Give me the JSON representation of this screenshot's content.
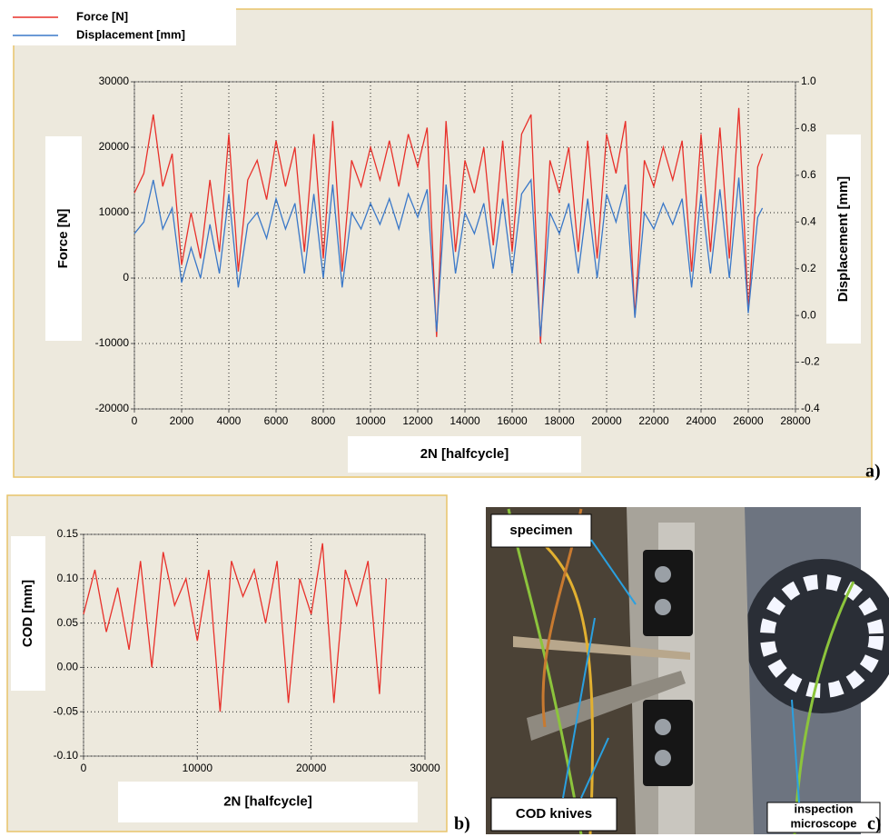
{
  "chart_data": [
    {
      "type": "line",
      "xlabel": "2N [halfcycle]",
      "ylabel": "Force [N]",
      "y2label": "Displacement [mm]",
      "legend": true,
      "grid": true,
      "xlim": [
        0,
        28000
      ],
      "xticks": [
        0,
        2000,
        4000,
        6000,
        8000,
        10000,
        12000,
        14000,
        16000,
        18000,
        20000,
        22000,
        24000,
        26000,
        28000
      ],
      "ylim": [
        -20000,
        30000
      ],
      "yticks": [
        -20000,
        -10000,
        0,
        10000,
        20000,
        30000
      ],
      "y2lim": [
        -0.4,
        1.0
      ],
      "y2ticks": [
        -0.4,
        -0.2,
        {
          "value": 0,
          "label": "0.0"
        },
        0.2,
        0.4,
        0.6,
        0.8,
        {
          "value": 1.0,
          "label": "1.0"
        }
      ],
      "x": [
        0,
        400,
        800,
        1200,
        1600,
        2000,
        2400,
        2800,
        3200,
        3600,
        4000,
        4400,
        4800,
        5200,
        5600,
        6000,
        6400,
        6800,
        7200,
        7600,
        8000,
        8400,
        8800,
        9200,
        9600,
        10000,
        10400,
        10800,
        11200,
        11600,
        12000,
        12400,
        12800,
        13200,
        13600,
        14000,
        14400,
        14800,
        15200,
        15600,
        16000,
        16400,
        16800,
        17200,
        17600,
        18000,
        18400,
        18800,
        19200,
        19600,
        20000,
        20400,
        20800,
        21200,
        21600,
        22000,
        22400,
        22800,
        23200,
        23600,
        24000,
        24400,
        24800,
        25200,
        25600,
        26000,
        26400,
        26600
      ],
      "series": [
        {
          "name": "Force [N]",
          "color": "#e8302a",
          "values": [
            13000,
            16000,
            25000,
            14000,
            19000,
            2000,
            10000,
            3000,
            15000,
            4000,
            22000,
            1000,
            15000,
            18000,
            12000,
            21000,
            14000,
            20000,
            4000,
            22000,
            3000,
            24000,
            1000,
            18000,
            14000,
            20000,
            15000,
            21000,
            14000,
            22000,
            17000,
            23000,
            -9000,
            24000,
            4000,
            18000,
            13000,
            20000,
            5000,
            21000,
            4000,
            22000,
            25000,
            -10000,
            18000,
            13000,
            20000,
            4000,
            21000,
            3000,
            22000,
            16000,
            24000,
            -6000,
            18000,
            14000,
            20000,
            15000,
            21000,
            1000,
            22000,
            4000,
            23000,
            3000,
            26000,
            -5000,
            17000,
            19000
          ]
        },
        {
          "name": "Displacement [mm]",
          "color": "#3a78c8",
          "axis": "y2",
          "values": [
            0.35,
            0.4,
            0.58,
            0.37,
            0.46,
            0.14,
            0.29,
            0.16,
            0.39,
            0.18,
            0.52,
            0.12,
            0.39,
            0.44,
            0.33,
            0.5,
            0.37,
            0.48,
            0.18,
            0.52,
            0.16,
            0.56,
            0.12,
            0.44,
            0.37,
            0.48,
            0.39,
            0.5,
            0.37,
            0.52,
            0.42,
            0.54,
            -0.07,
            0.56,
            0.18,
            0.44,
            0.35,
            0.48,
            0.2,
            0.5,
            0.18,
            0.52,
            0.58,
            -0.09,
            0.44,
            0.35,
            0.48,
            0.18,
            0.5,
            0.16,
            0.52,
            0.4,
            0.56,
            -0.01,
            0.44,
            0.37,
            0.48,
            0.39,
            0.5,
            0.12,
            0.52,
            0.18,
            0.54,
            0.16,
            0.59,
            0.01,
            0.42,
            0.46
          ]
        }
      ]
    },
    {
      "type": "line",
      "xlabel": "2N [halfcycle]",
      "ylabel": "COD [mm]",
      "grid": true,
      "xlim": [
        0,
        30000
      ],
      "xticks": [
        0,
        10000,
        20000,
        30000
      ],
      "ylim": [
        -0.1,
        0.15
      ],
      "yticks": [
        {
          "value": -0.1,
          "label": "-0.10"
        },
        {
          "value": -0.05,
          "label": "-0.05"
        },
        {
          "value": 0,
          "label": "0.00"
        },
        {
          "value": 0.05,
          "label": "0.05"
        },
        {
          "value": 0.1,
          "label": "0.10"
        },
        {
          "value": 0.15,
          "label": "0.15"
        }
      ],
      "x": [
        0,
        1000,
        2000,
        3000,
        4000,
        5000,
        6000,
        7000,
        8000,
        9000,
        10000,
        11000,
        12000,
        13000,
        14000,
        15000,
        16000,
        17000,
        18000,
        19000,
        20000,
        21000,
        22000,
        23000,
        24000,
        25000,
        26000,
        26600
      ],
      "series": [
        {
          "color": "#e8302a",
          "values": [
            0.06,
            0.11,
            0.04,
            0.09,
            0.02,
            0.12,
            0.0,
            0.13,
            0.07,
            0.1,
            0.03,
            0.11,
            -0.05,
            0.12,
            0.08,
            0.11,
            0.05,
            0.12,
            -0.04,
            0.1,
            0.06,
            0.14,
            -0.04,
            0.11,
            0.07,
            0.12,
            -0.03,
            0.1
          ]
        }
      ]
    }
  ],
  "panel_labels": [
    "a)",
    "b)",
    "c)"
  ],
  "photo": {
    "labels": [
      "specimen",
      "COD knives"
    ],
    "microscope_label": [
      "inspection",
      "microscope"
    ]
  }
}
